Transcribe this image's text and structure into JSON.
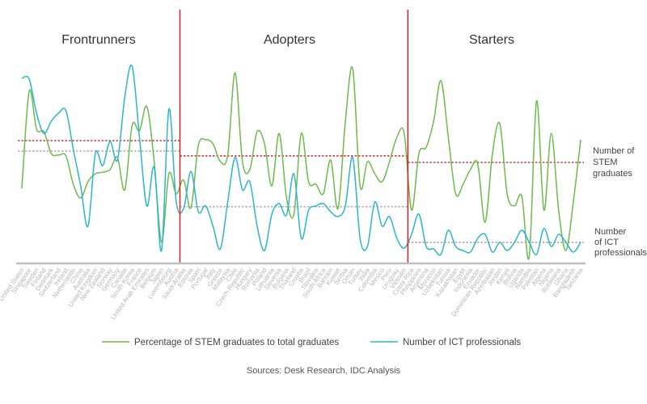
{
  "chart_data": {
    "type": "line",
    "title": "",
    "xlabel": "",
    "ylabel": "",
    "y_scale_note_units": "relative index 0-100",
    "ylim": [
      0,
      100
    ],
    "grid": false,
    "legend_placement": "bottom",
    "groups": [
      {
        "name": "Frontrunners",
        "count": 22,
        "avg_stem": 61.8,
        "avg_ict": 56.5
      },
      {
        "name": "Adopters",
        "count": 31,
        "avg_stem": 54.1,
        "avg_ict": 28.5
      },
      {
        "name": "Starters",
        "count": 24,
        "avg_stem": 50.8,
        "avg_ict": 10.6
      }
    ],
    "categories": [
      "United States",
      "Singapore",
      "Sweden",
      "Finland",
      "Denmark",
      "Switzerland",
      "Ireland",
      "Netherlands",
      "China",
      "Australia",
      "United Kingdom",
      "New Zealand",
      "Norway",
      "Germany",
      "Canada",
      "South Korea",
      "France",
      "United Arab Emirates",
      "Belgium",
      "Japan",
      "Luxembourg",
      "Austria",
      "Saudi Arabia",
      "Estonia",
      "Spain",
      "Portugal",
      "Italy",
      "Greece",
      "Malaysia",
      "Chile",
      "Czech Republic",
      "Hungary",
      "Romania",
      "Poland",
      "Lithuania",
      "Slovenia",
      "Bulgaria",
      "Thailand",
      "Croatia",
      "Brazil",
      "Slovakia",
      "South Africa",
      "Bahrain",
      "Kuwait",
      "Serbia",
      "Oman",
      "Turkey",
      "India",
      "Colombia",
      "Mexico",
      "Peru",
      "Uruguay",
      "Vietnam",
      "Costa Rica",
      "Philippines",
      "Argentina",
      "Morocco",
      "Uzbekistan",
      "Tunisia",
      "Kazakhstan",
      "Egypt",
      "Indonesia",
      "Ecuador",
      "Dominican Republic",
      "Azerbaijan",
      "Jordan",
      "Kenya",
      "Bolivia",
      "Uganda",
      "Namibia",
      "Pakistan",
      "Algeria",
      "Nigeria",
      "Botswana",
      "Ghana",
      "Bangladesh",
      "Tanzania"
    ],
    "series": [
      {
        "name": "Percentage of STEM graduates to total graduates",
        "color": "#6cbb4c",
        "values": [
          37.8,
          86.6,
          67.5,
          66.3,
          55.3,
          54.5,
          54.1,
          39.8,
          32.9,
          41.1,
          45.1,
          45.9,
          47.2,
          53.3,
          37.0,
          69.5,
          66.7,
          78.9,
          51.2,
          10.6,
          45.1,
          35.0,
          41.9,
          28.0,
          59.3,
          62.2,
          60.2,
          51.2,
          54.5,
          95.9,
          51.2,
          47.2,
          66.3,
          60.2,
          39.0,
          65.4,
          32.9,
          24.8,
          65.4,
          41.1,
          39.8,
          35.0,
          52.0,
          27.6,
          71.5,
          98.0,
          39.0,
          51.2,
          45.1,
          41.1,
          51.2,
          63.4,
          65.4,
          26.8,
          55.3,
          58.5,
          71.5,
          91.9,
          63.4,
          35.0,
          39.8,
          47.2,
          50.0,
          20.7,
          55.3,
          70.3,
          35.0,
          28.9,
          33.7,
          3.3,
          81.7,
          26.8,
          65.4,
          26.8,
          6.5,
          30.9,
          62.2
        ]
      },
      {
        "name": "Number of ICT professionals",
        "color": "#2bb6c9",
        "values": [
          93.1,
          92.7,
          75.6,
          65.4,
          71.5,
          75.6,
          76.8,
          57.3,
          39.0,
          18.7,
          55.3,
          49.2,
          61.4,
          52.0,
          83.7,
          99.2,
          63.4,
          28.9,
          48.4,
          6.5,
          77.6,
          30.9,
          27.6,
          46.3,
          26.0,
          28.9,
          18.7,
          7.3,
          30.9,
          53.3,
          37.0,
          41.1,
          18.7,
          6.5,
          24.8,
          30.1,
          24.4,
          45.1,
          12.6,
          26.8,
          28.9,
          30.1,
          26.0,
          23.6,
          28.9,
          53.3,
          12.6,
          8.5,
          30.9,
          18.7,
          23.6,
          12.6,
          7.7,
          14.6,
          24.8,
          8.5,
          7.3,
          4.5,
          16.7,
          8.5,
          6.5,
          5.7,
          12.6,
          14.6,
          5.7,
          10.6,
          6.5,
          10.6,
          16.7,
          10.6,
          4.5,
          17.5,
          8.5,
          14.6,
          10.6,
          5.7,
          10.6
        ]
      }
    ],
    "annotations": {
      "stem_avg_label": "Number of STEM graduates",
      "ict_avg_label": "Number of ICT professionals"
    },
    "colors": {
      "divider": "#e02020",
      "stem_avg": "#c0101a",
      "ict_avg": "#999999",
      "axis": "#c0c0c0"
    }
  },
  "source": "Sources: Desk Research, IDC Analysis"
}
